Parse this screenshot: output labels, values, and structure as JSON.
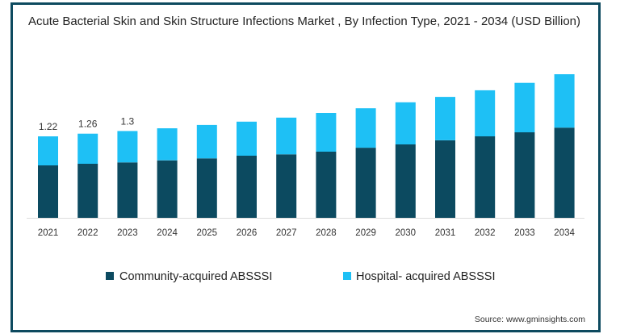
{
  "chart_data": {
    "type": "bar",
    "stacked": true,
    "title": "Acute Bacterial Skin and Skin Structure Infections Market , By Infection Type, 2021 - 2034 (USD Billion)",
    "xlabel": "",
    "ylabel": "",
    "ylim": [
      0,
      2.3
    ],
    "grid": false,
    "legend_position": "bottom",
    "categories": [
      "2021",
      "2022",
      "2023",
      "2024",
      "2025",
      "2026",
      "2027",
      "2028",
      "2029",
      "2030",
      "2031",
      "2032",
      "2033",
      "2034"
    ],
    "series": [
      {
        "name": "Community-acquired ABSSSI",
        "color": "#0c4a60",
        "values": [
          0.785,
          0.81,
          0.83,
          0.86,
          0.89,
          0.93,
          0.95,
          0.99,
          1.05,
          1.1,
          1.16,
          1.22,
          1.28,
          1.35
        ]
      },
      {
        "name": "Hospital- acquired ABSSSI",
        "color": "#1ec0f5",
        "values": [
          0.435,
          0.45,
          0.47,
          0.48,
          0.5,
          0.51,
          0.55,
          0.58,
          0.59,
          0.63,
          0.65,
          0.69,
          0.74,
          0.8
        ]
      }
    ],
    "data_labels": [
      {
        "category": "2021",
        "text": "1.22"
      },
      {
        "category": "2022",
        "text": "1.26"
      },
      {
        "category": "2023",
        "text": "1.3"
      }
    ],
    "source": "Source: www.gminsights.com"
  }
}
